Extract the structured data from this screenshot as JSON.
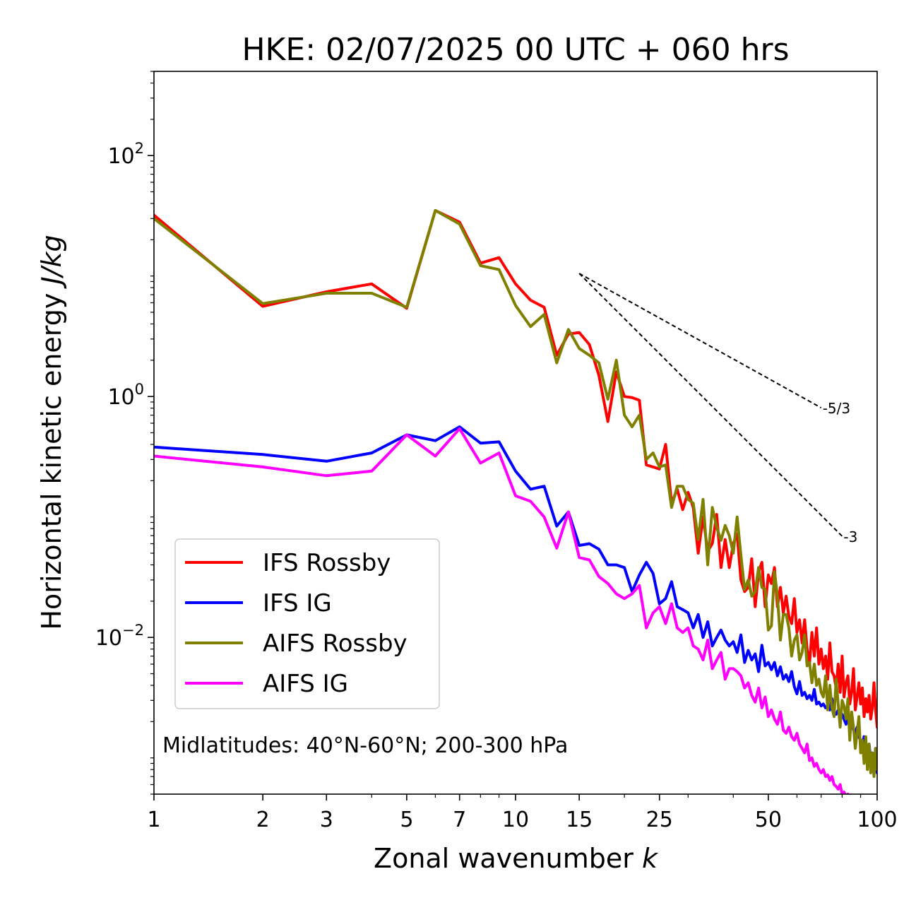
{
  "chart_data": {
    "type": "line",
    "title": "HKE: 02/07/2025 00 UTC + 060 hrs",
    "xlabel_text": "Zonal wavenumber ",
    "xlabel_var": "k",
    "ylabel_text": "Horizontal kinetic energy ",
    "ylabel_unit": "J/kg",
    "xscale": "log",
    "yscale": "log",
    "xlim": [
      1,
      100
    ],
    "ylim": [
      0.0005,
      500
    ],
    "x_ticks": [
      1,
      2,
      3,
      5,
      7,
      10,
      15,
      25,
      50,
      100
    ],
    "x_tick_labels": [
      "1",
      "2",
      "3",
      "5",
      "7",
      "10",
      "15",
      "25",
      "50",
      "100"
    ],
    "y_ticks": [
      0.01,
      1,
      100
    ],
    "y_tick_labels": [
      {
        "base": "10",
        "exp": "−2"
      },
      {
        "base": "10",
        "exp": "0"
      },
      {
        "base": "10",
        "exp": "2"
      }
    ],
    "legend_position": "lower-left",
    "annotation": "Midlatitudes: 40°N-60°N; 200-300 hPa",
    "reference_slopes": [
      {
        "label": "-5/3",
        "slope": -1.6667,
        "x_start": 15,
        "y_start": 10.5,
        "x_end": 70
      },
      {
        "label": "-3",
        "slope": -3,
        "x_start": 15,
        "y_start": 10.5,
        "x_end": 80
      }
    ],
    "series": [
      {
        "name": "IFS Rossby",
        "color": "#ff0000",
        "x": [
          1,
          2,
          3,
          4,
          5,
          6,
          7,
          8,
          9,
          10,
          11,
          12,
          13,
          14,
          15,
          16,
          17,
          18,
          19,
          20,
          21,
          22,
          23,
          24,
          25,
          26,
          27,
          28,
          29,
          30,
          31,
          32,
          33,
          34,
          35,
          36,
          37,
          38,
          39,
          40,
          41,
          42,
          43,
          44,
          45,
          46,
          47,
          48,
          49,
          50,
          51,
          52,
          53,
          54,
          55,
          56,
          57,
          58,
          59,
          60,
          61,
          62,
          63,
          64,
          65,
          66,
          67,
          68,
          69,
          70,
          71,
          72,
          73,
          74,
          75,
          76,
          77,
          78,
          79,
          80,
          81,
          82,
          83,
          84,
          85,
          86,
          87,
          88,
          89,
          90,
          91,
          92,
          93,
          94,
          95,
          96,
          97,
          98,
          99,
          100
        ],
        "values": [
          32,
          5.6,
          7.4,
          8.6,
          5.4,
          35,
          28,
          12.8,
          14.2,
          8.6,
          6.3,
          5.5,
          2.2,
          3.3,
          3.4,
          2.7,
          1.5,
          0.62,
          1.6,
          1.0,
          0.98,
          0.93,
          0.27,
          0.26,
          0.25,
          0.4,
          0.13,
          0.17,
          0.115,
          0.16,
          0.12,
          0.05,
          0.1,
          0.052,
          0.06,
          0.105,
          0.038,
          0.065,
          0.038,
          0.06,
          0.072,
          0.03,
          0.024,
          0.026,
          0.045,
          0.018,
          0.035,
          0.042,
          0.018,
          0.033,
          0.028,
          0.038,
          0.018,
          0.026,
          0.016,
          0.022,
          0.015,
          0.013,
          0.021,
          0.011,
          0.014,
          0.009,
          0.014,
          0.008,
          0.006,
          0.011,
          0.007,
          0.012,
          0.006,
          0.008,
          0.0055,
          0.007,
          0.0045,
          0.009,
          0.0052,
          0.0048,
          0.0038,
          0.006,
          0.0035,
          0.007,
          0.0032,
          0.0042,
          0.0048,
          0.0028,
          0.0035,
          0.0055,
          0.0025,
          0.0032,
          0.0042,
          0.0028,
          0.0038,
          0.0022,
          0.0031,
          0.0024,
          0.0033,
          0.0021,
          0.0026,
          0.0042,
          0.0025,
          0.0018
        ]
      },
      {
        "name": "IFS IG",
        "color": "#0000ff",
        "x": [
          1,
          2,
          3,
          4,
          5,
          6,
          7,
          8,
          9,
          10,
          11,
          12,
          13,
          14,
          15,
          16,
          17,
          18,
          19,
          20,
          21,
          22,
          23,
          24,
          25,
          26,
          27,
          28,
          29,
          30,
          31,
          32,
          33,
          34,
          35,
          36,
          37,
          38,
          39,
          40,
          41,
          42,
          43,
          44,
          45,
          46,
          47,
          48,
          49,
          50,
          51,
          52,
          53,
          54,
          55,
          56,
          57,
          58,
          59,
          60,
          61,
          62,
          63,
          64,
          65,
          66,
          67,
          68,
          69,
          70,
          71,
          72,
          73,
          74,
          75,
          76,
          77,
          78,
          79,
          80,
          81,
          82,
          83,
          84,
          85,
          86,
          87,
          88,
          89,
          90,
          91,
          92,
          93,
          94,
          95,
          96,
          97,
          98,
          99,
          100
        ],
        "values": [
          0.38,
          0.33,
          0.29,
          0.34,
          0.48,
          0.43,
          0.56,
          0.41,
          0.42,
          0.24,
          0.17,
          0.18,
          0.084,
          0.11,
          0.058,
          0.06,
          0.054,
          0.04,
          0.04,
          0.038,
          0.024,
          0.033,
          0.042,
          0.034,
          0.019,
          0.021,
          0.029,
          0.018,
          0.017,
          0.016,
          0.012,
          0.0155,
          0.01,
          0.0135,
          0.0085,
          0.01,
          0.0115,
          0.0095,
          0.0085,
          0.0092,
          0.0075,
          0.0105,
          0.0062,
          0.0078,
          0.0065,
          0.0073,
          0.0052,
          0.0086,
          0.0058,
          0.0062,
          0.0054,
          0.0062,
          0.0048,
          0.0057,
          0.0045,
          0.0049,
          0.0043,
          0.0052,
          0.0039,
          0.0034,
          0.0043,
          0.0033,
          0.0035,
          0.0031,
          0.0033,
          0.003,
          0.0037,
          0.0028,
          0.0029,
          0.0027,
          0.0028,
          0.0026,
          0.0027,
          0.0025,
          0.0031,
          0.0024,
          0.0023,
          0.0025,
          0.0022,
          0.0023,
          0.0021,
          0.0019,
          0.0022,
          0.0018,
          0.0021,
          0.0017,
          0.0016,
          0.0018,
          0.0015,
          0.0014,
          0.0013,
          0.0015,
          0.0012,
          0.0011,
          0.0013,
          0.00095,
          0.0011,
          0.00085,
          0.0012,
          0.00075
        ]
      },
      {
        "name": "AIFS Rossby",
        "color": "#808000",
        "x": [
          1,
          2,
          3,
          4,
          5,
          6,
          7,
          8,
          9,
          10,
          11,
          12,
          13,
          14,
          15,
          16,
          17,
          18,
          19,
          20,
          21,
          22,
          23,
          24,
          25,
          26,
          27,
          28,
          29,
          30,
          31,
          32,
          33,
          34,
          35,
          36,
          37,
          38,
          39,
          40,
          41,
          42,
          43,
          44,
          45,
          46,
          47,
          48,
          49,
          50,
          51,
          52,
          53,
          54,
          55,
          56,
          57,
          58,
          59,
          60,
          61,
          62,
          63,
          64,
          65,
          66,
          67,
          68,
          69,
          70,
          71,
          72,
          73,
          74,
          75,
          76,
          77,
          78,
          79,
          80,
          81,
          82,
          83,
          84,
          85,
          86,
          87,
          88,
          89,
          90,
          91,
          92,
          93,
          94,
          95,
          96,
          97,
          98,
          99,
          100
        ],
        "values": [
          30,
          5.9,
          7.2,
          7.2,
          5.5,
          35,
          27,
          12.2,
          11.3,
          5.7,
          3.8,
          4.8,
          1.9,
          3.6,
          2.5,
          2.2,
          1.9,
          0.95,
          2.0,
          0.7,
          0.56,
          0.7,
          0.3,
          0.34,
          0.26,
          0.27,
          0.12,
          0.18,
          0.18,
          0.14,
          0.13,
          0.065,
          0.14,
          0.04,
          0.12,
          0.082,
          0.064,
          0.085,
          0.07,
          0.05,
          0.1,
          0.048,
          0.025,
          0.03,
          0.022,
          0.024,
          0.038,
          0.026,
          0.025,
          0.0115,
          0.0125,
          0.035,
          0.022,
          0.0095,
          0.0155,
          0.0155,
          0.012,
          0.007,
          0.0095,
          0.0105,
          0.0065,
          0.0075,
          0.0105,
          0.0058,
          0.0062,
          0.0042,
          0.006,
          0.004,
          0.0045,
          0.0035,
          0.0032,
          0.0048,
          0.0025,
          0.004,
          0.0026,
          0.0022,
          0.0045,
          0.0028,
          0.0018,
          0.003,
          0.0027,
          0.0021,
          0.0031,
          0.0014,
          0.0024,
          0.0018,
          0.0012,
          0.0016,
          0.0022,
          0.0011,
          0.0014,
          0.0009,
          0.0015,
          0.0008,
          0.0013,
          0.00075,
          0.0011,
          0.0007,
          0.0012,
          0.0008
        ]
      },
      {
        "name": "AIFS IG",
        "color": "#ff00ff",
        "x": [
          1,
          2,
          3,
          4,
          5,
          6,
          7,
          8,
          9,
          10,
          11,
          12,
          13,
          14,
          15,
          16,
          17,
          18,
          19,
          20,
          21,
          22,
          23,
          24,
          25,
          26,
          27,
          28,
          29,
          30,
          31,
          32,
          33,
          34,
          35,
          36,
          37,
          38,
          39,
          40,
          41,
          42,
          43,
          44,
          45,
          46,
          47,
          48,
          49,
          50,
          51,
          52,
          53,
          54,
          55,
          56,
          57,
          58,
          59,
          60,
          61,
          62,
          63,
          64,
          65,
          66,
          67,
          68,
          69,
          70,
          71,
          72,
          73,
          74,
          75,
          76,
          77,
          78,
          79,
          80,
          81,
          82,
          83,
          84,
          85,
          86,
          87,
          88,
          89,
          90,
          91,
          92,
          93,
          94,
          95,
          96,
          97,
          98,
          99,
          100
        ],
        "values": [
          0.32,
          0.26,
          0.22,
          0.24,
          0.48,
          0.32,
          0.54,
          0.28,
          0.34,
          0.15,
          0.135,
          0.1,
          0.055,
          0.11,
          0.046,
          0.044,
          0.032,
          0.028,
          0.023,
          0.021,
          0.023,
          0.027,
          0.012,
          0.016,
          0.018,
          0.013,
          0.019,
          0.012,
          0.011,
          0.012,
          0.0085,
          0.008,
          0.0065,
          0.0095,
          0.0055,
          0.0065,
          0.0075,
          0.0045,
          0.0055,
          0.0055,
          0.0052,
          0.0048,
          0.0038,
          0.0042,
          0.0033,
          0.0029,
          0.0038,
          0.0026,
          0.0032,
          0.0022,
          0.0025,
          0.0021,
          0.0019,
          0.0024,
          0.0017,
          0.0016,
          0.0018,
          0.0015,
          0.0014,
          0.0016,
          0.0013,
          0.0012,
          0.0011,
          0.0013,
          0.00095,
          0.001,
          0.00085,
          0.0009,
          0.0008,
          0.00075,
          0.0008,
          0.0007,
          0.00072,
          0.00065,
          0.0007,
          0.0006,
          0.00058,
          0.00055,
          0.0006,
          0.0005,
          0.00052,
          0.00048,
          0.0005,
          0.00045,
          0.00046,
          0.00042,
          0.00044,
          0.0004,
          0.00041,
          0.00038,
          0.00039,
          0.00036,
          0.00037,
          0.00034,
          0.00035,
          0.00033,
          0.00034,
          0.00031,
          0.00032,
          0.0003
        ]
      }
    ]
  }
}
